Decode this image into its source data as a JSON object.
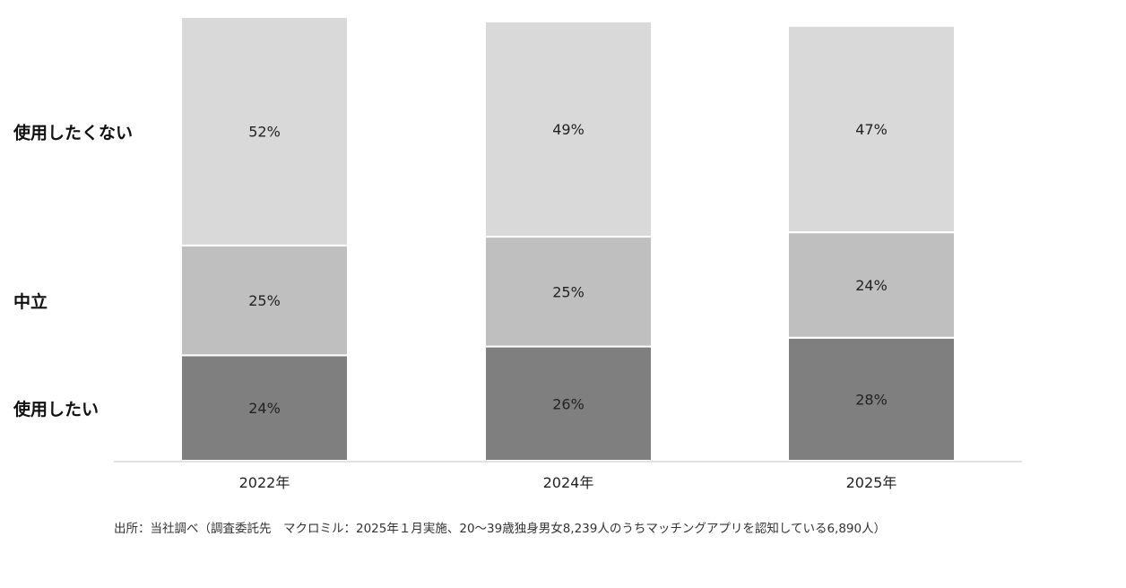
{
  "chart_data": {
    "type": "bar",
    "stacked": true,
    "categories": [
      "2022年",
      "2024年",
      "2025年"
    ],
    "series": [
      {
        "name": "使用したい",
        "values": [
          24,
          26,
          28
        ],
        "color": "#7f7f7f"
      },
      {
        "name": "中立",
        "values": [
          25,
          25,
          24
        ],
        "color": "#bfbfbf"
      },
      {
        "name": "使用したくない",
        "values": [
          52,
          49,
          47
        ],
        "color": "#d9d9d9"
      }
    ],
    "value_suffix": "%",
    "ylim": [
      0,
      100
    ],
    "grid": false,
    "legend": "left",
    "axis_color": "#e2e2e2"
  },
  "source_note": "出所：当社調べ（調査委託先　マクロミル：2025年１月実施、20〜39歳独身男女8,239人のうちマッチングアプリを認知している6,890人）"
}
